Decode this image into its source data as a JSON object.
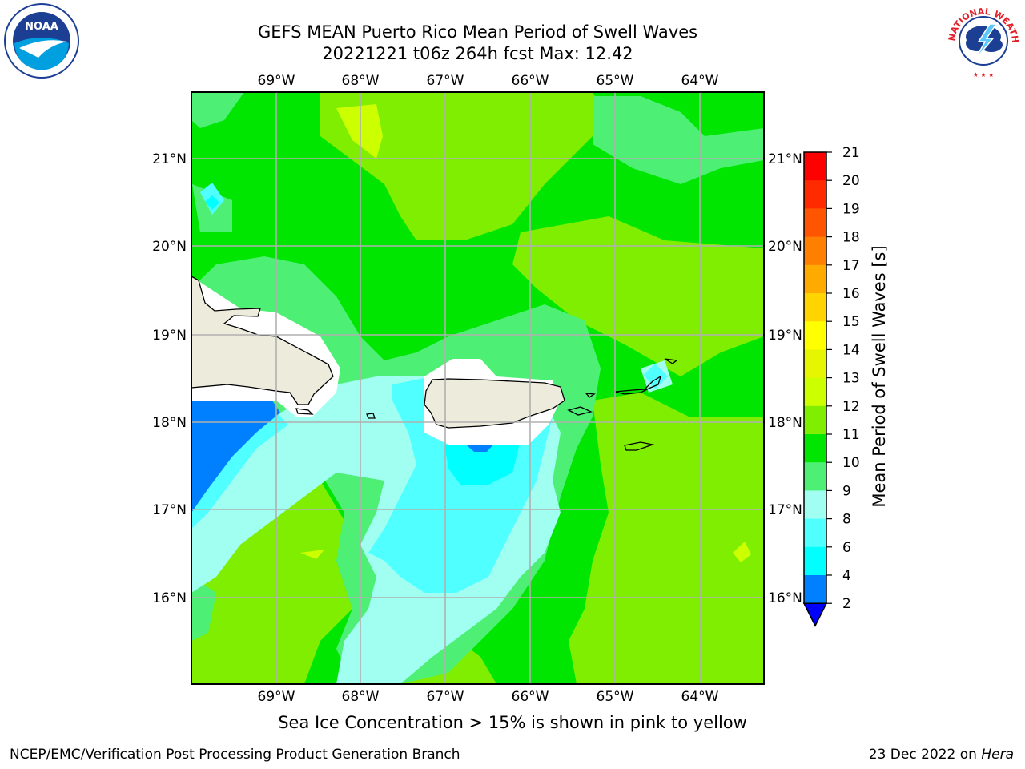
{
  "header": {
    "title_line1": "GEFS MEAN Puerto Rico Mean Period of Swell Waves",
    "title_line2": "20221221 t06z 264h fcst   Max: 12.42"
  },
  "logos": {
    "left": "NOAA",
    "right": "NATIONAL WEATHER SERVICE"
  },
  "map": {
    "lon_labels": [
      "69°W",
      "68°W",
      "67°W",
      "66°W",
      "65°W",
      "64°W"
    ],
    "lat_labels": [
      "21°N",
      "20°N",
      "19°N",
      "18°N",
      "17°N",
      "16°N"
    ]
  },
  "colorbar": {
    "label": "Mean Period of Swell Waves [s]",
    "ticks": [
      "21",
      "20",
      "19",
      "18",
      "17",
      "16",
      "15",
      "14",
      "13",
      "12",
      "11",
      "10",
      "9",
      "8",
      "6",
      "4",
      "2"
    ],
    "colors": {
      "21": "#ff0000",
      "20": "#ff2a00",
      "19": "#ff5500",
      "18": "#ff7f00",
      "17": "#ffaa00",
      "16": "#ffd400",
      "15": "#ffff00",
      "14": "#e6f500",
      "13": "#ccff00",
      "12": "#80ee00",
      "11": "#00e600",
      "10": "#4df075",
      "9": "#a0fff0",
      "8": "#50ffff",
      "6": "#00ffff",
      "4": "#0080ff",
      "2": "#0000ff"
    }
  },
  "subtitle": "Sea Ice Concentration > 15% is shown in pink to yellow",
  "footer": {
    "left": "NCEP/EMC/Verification Post Processing Product Generation Branch",
    "right_prefix": "23 Dec 2022 on ",
    "right_host": "Hera"
  }
}
